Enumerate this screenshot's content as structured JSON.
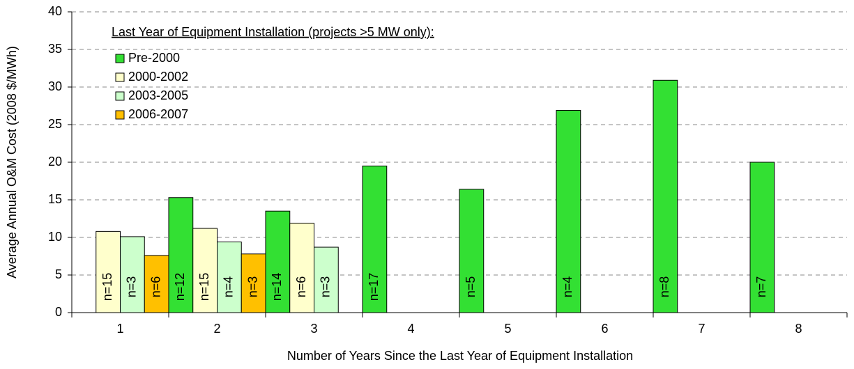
{
  "chart_data": {
    "type": "bar",
    "x_label": "Number of Years Since the Last Year of Equipment Installation",
    "y_label": "Average Annual O&M Cost (2008 $/MWh)",
    "legend_title": "Last Year of Equipment Installation (projects >5 MW only):",
    "categories": [
      "1",
      "2",
      "3",
      "4",
      "5",
      "6",
      "7",
      "8"
    ],
    "series": [
      {
        "name": "Pre-2000",
        "color": "#33e033",
        "values": [
          null,
          15.3,
          13.5,
          19.5,
          16.4,
          26.9,
          30.9,
          20.0
        ],
        "n_labels": [
          null,
          "n=12",
          "n=14",
          "n=17",
          "n=5",
          "n=4",
          "n=8",
          "n=7"
        ]
      },
      {
        "name": "2000-2002",
        "color": "#ffffcc",
        "values": [
          10.8,
          11.2,
          11.9,
          null,
          null,
          null,
          null,
          null
        ],
        "n_labels": [
          "n=15",
          "n=15",
          "n=6",
          null,
          null,
          null,
          null,
          null
        ]
      },
      {
        "name": "2003-2005",
        "color": "#ccffcc",
        "values": [
          10.1,
          9.4,
          8.7,
          null,
          null,
          null,
          null,
          null
        ],
        "n_labels": [
          "n=3",
          "n=4",
          "n=3",
          null,
          null,
          null,
          null,
          null
        ]
      },
      {
        "name": "2006-2007",
        "color": "#ffc000",
        "values": [
          7.6,
          7.8,
          null,
          null,
          null,
          null,
          null,
          null
        ],
        "n_labels": [
          "n=6",
          "n=3",
          null,
          null,
          null,
          null,
          null,
          null
        ]
      }
    ],
    "ylim": [
      0,
      40
    ],
    "yticks": [
      0,
      5,
      10,
      15,
      20,
      25,
      30,
      35,
      40
    ],
    "grid": true
  }
}
